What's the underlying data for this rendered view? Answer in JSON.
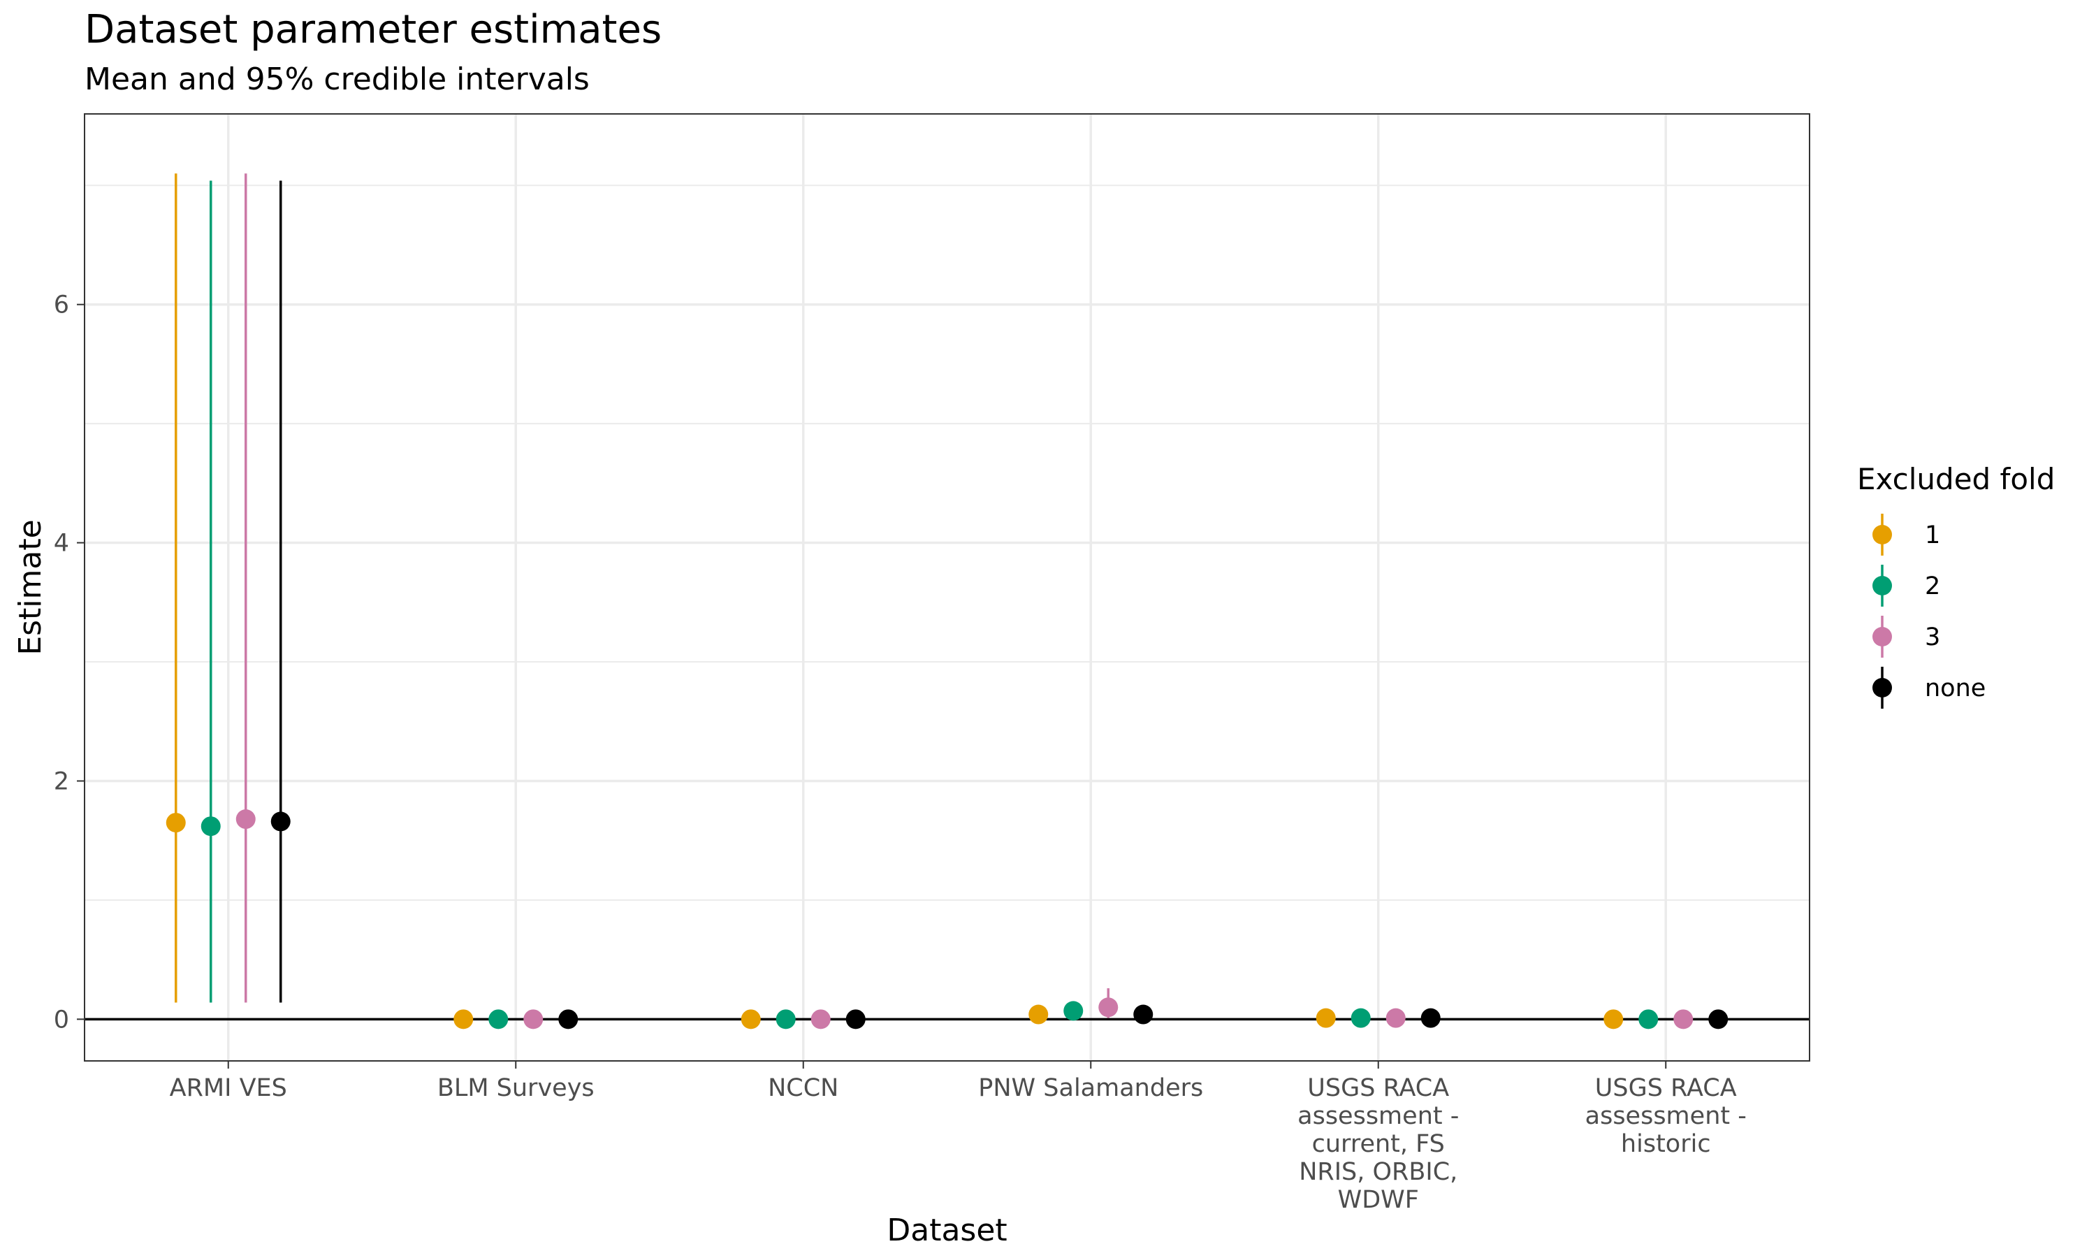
{
  "chart_data": {
    "type": "scatter",
    "title": "Dataset parameter estimates",
    "subtitle": "Mean and 95% credible intervals",
    "xlabel": "Dataset",
    "ylabel": "Estimate",
    "ylim": [
      -0.35,
      7.6
    ],
    "yticks": [
      0,
      2,
      4,
      6
    ],
    "grid": true,
    "reference_line_y": 0,
    "categories": [
      [
        "ARMI VES"
      ],
      [
        "BLM Surveys"
      ],
      [
        "NCCN"
      ],
      [
        "PNW Salamanders"
      ],
      [
        "USGS RACA",
        "assessment -",
        "current, FS",
        "NRIS, ORBIC,",
        "WDWF"
      ],
      [
        "USGS RACA",
        "assessment -",
        "historic"
      ]
    ],
    "legend": {
      "title": "Excluded fold",
      "position": "right"
    },
    "series": [
      {
        "name": "1",
        "color": "#E69F00",
        "mean": [
          1.65,
          0.0,
          0.0,
          0.04,
          0.01,
          0.0
        ],
        "lower": [
          0.14,
          0.0,
          0.0,
          0.0,
          0.0,
          0.0
        ],
        "upper": [
          7.1,
          0.01,
          0.01,
          0.07,
          0.02,
          0.01
        ]
      },
      {
        "name": "2",
        "color": "#009E73",
        "mean": [
          1.62,
          0.0,
          0.0,
          0.07,
          0.01,
          0.0
        ],
        "lower": [
          0.14,
          0.0,
          0.0,
          0.02,
          0.0,
          0.0
        ],
        "upper": [
          7.04,
          0.01,
          0.01,
          0.15,
          0.02,
          0.01
        ]
      },
      {
        "name": "3",
        "color": "#CC79A7",
        "mean": [
          1.68,
          0.0,
          0.0,
          0.1,
          0.01,
          0.0
        ],
        "lower": [
          0.14,
          0.0,
          0.0,
          0.01,
          0.0,
          0.0
        ],
        "upper": [
          7.1,
          0.01,
          0.01,
          0.26,
          0.02,
          0.01
        ]
      },
      {
        "name": "none",
        "color": "#000000",
        "mean": [
          1.66,
          0.0,
          0.0,
          0.04,
          0.01,
          0.0
        ],
        "lower": [
          0.14,
          0.0,
          0.0,
          0.0,
          0.0,
          0.0
        ],
        "upper": [
          7.04,
          0.01,
          0.01,
          0.07,
          0.02,
          0.01
        ]
      }
    ]
  }
}
